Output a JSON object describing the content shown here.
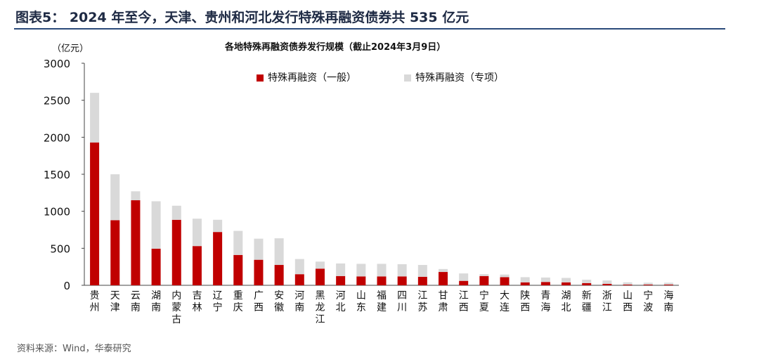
{
  "figure": {
    "title": "图表5：  2024 年至今，天津、贵州和河北发行特殊再融资债券共 535 亿元",
    "source": "资料来源：Wind，华泰研究"
  },
  "chart_data": {
    "type": "bar",
    "stacked": true,
    "title": "各地特殊再融资债券发行规模（截止2024年3月9日）",
    "ylabel": "（亿元）",
    "xlabel": "",
    "ylim": [
      0,
      3000
    ],
    "yticks": [
      0,
      500,
      1000,
      1500,
      2000,
      2500,
      3000
    ],
    "grid": false,
    "legend_position": "top",
    "categories": [
      "贵州",
      "天津",
      "云南",
      "湖南",
      "内蒙古",
      "吉林",
      "辽宁",
      "重庆",
      "广西",
      "安徽",
      "河南",
      "黑龙江",
      "河北",
      "山东",
      "福建",
      "四川",
      "江苏",
      "甘肃",
      "江西",
      "宁夏",
      "大连",
      "陕西",
      "青海",
      "湖北",
      "新疆",
      "浙江",
      "山西",
      "宁波",
      "海南"
    ],
    "series": [
      {
        "name": "特殊再融资（一般）",
        "color": "#c00000",
        "values": [
          1930,
          880,
          1150,
          495,
          885,
          530,
          720,
          410,
          345,
          275,
          150,
          225,
          125,
          120,
          120,
          120,
          115,
          180,
          60,
          125,
          110,
          40,
          45,
          40,
          30,
          20,
          10,
          10,
          10
        ]
      },
      {
        "name": "特殊再融资（专项）",
        "color": "#d9d9d9",
        "values": [
          670,
          620,
          120,
          640,
          190,
          370,
          165,
          325,
          285,
          360,
          205,
          95,
          170,
          170,
          170,
          165,
          160,
          40,
          100,
          25,
          35,
          70,
          60,
          60,
          45,
          45,
          30,
          25,
          25
        ]
      }
    ]
  }
}
